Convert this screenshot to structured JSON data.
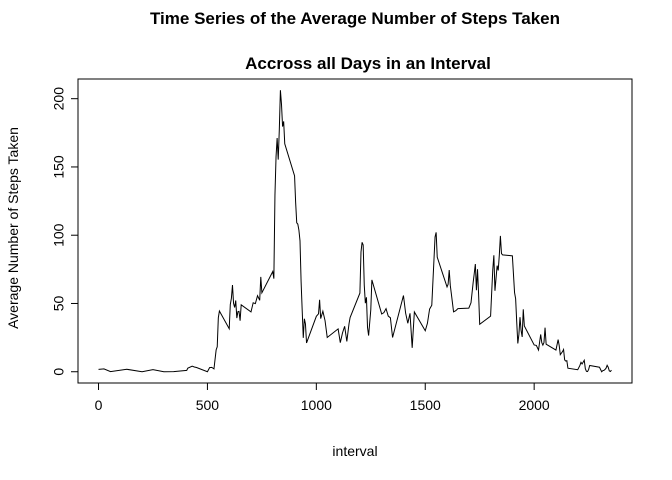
{
  "chart_data": {
    "type": "line",
    "title": "Time Series of the Average Number of Steps Taken",
    "subtitle": "Accross all Days in an Interval",
    "x_label": "interval",
    "y_label": "Average Number of Steps Taken",
    "color": "#000000",
    "xlim": [
      -94.2,
      2449.2
    ],
    "ylim": [
      -8.25,
      214.42
    ],
    "xticks": [
      0,
      500,
      1000,
      1500,
      2000
    ],
    "yticks": [
      0,
      50,
      100,
      150,
      200
    ],
    "x": [
      0,
      25,
      55,
      130,
      200,
      250,
      300,
      345,
      405,
      410,
      430,
      440,
      450,
      500,
      510,
      520,
      530,
      540,
      545,
      550,
      555,
      600,
      605,
      610,
      615,
      620,
      625,
      630,
      635,
      640,
      645,
      650,
      655,
      700,
      710,
      720,
      730,
      740,
      745,
      750,
      800,
      805,
      810,
      815,
      820,
      825,
      830,
      835,
      840,
      845,
      850,
      855,
      900,
      905,
      910,
      915,
      920,
      925,
      930,
      935,
      940,
      945,
      950,
      955,
      1000,
      1010,
      1015,
      1020,
      1030,
      1040,
      1050,
      1100,
      1110,
      1120,
      1130,
      1140,
      1150,
      1155,
      1200,
      1205,
      1210,
      1215,
      1220,
      1225,
      1230,
      1235,
      1240,
      1250,
      1255,
      1300,
      1310,
      1320,
      1330,
      1340,
      1350,
      1400,
      1410,
      1420,
      1430,
      1440,
      1450,
      1500,
      1510,
      1520,
      1530,
      1545,
      1550,
      1555,
      1600,
      1605,
      1610,
      1615,
      1620,
      1630,
      1640,
      1650,
      1700,
      1710,
      1720,
      1725,
      1730,
      1735,
      1740,
      1745,
      1750,
      1800,
      1805,
      1810,
      1815,
      1820,
      1830,
      1835,
      1840,
      1845,
      1850,
      1855,
      1900,
      1910,
      1915,
      1920,
      1925,
      1930,
      1935,
      1940,
      1945,
      1950,
      1955,
      2000,
      2010,
      2020,
      2030,
      2035,
      2040,
      2045,
      2050,
      2055,
      2100,
      2110,
      2115,
      2120,
      2130,
      2135,
      2140,
      2145,
      2150,
      2155,
      2200,
      2210,
      2215,
      2220,
      2225,
      2230,
      2235,
      2240,
      2245,
      2250,
      2255,
      2300,
      2310,
      2315,
      2320,
      2325,
      2330,
      2335,
      2340,
      2345,
      2350,
      2355
    ],
    "values": [
      1.7,
      2.1,
      0.1,
      1.8,
      0,
      1.5,
      0,
      0.1,
      1,
      2.6,
      4.1,
      3.5,
      3.1,
      0,
      3,
      3.2,
      2.1,
      16,
      18.3,
      39.5,
      44.5,
      31.5,
      49.3,
      53.8,
      63.5,
      50,
      47.1,
      52.2,
      39.3,
      44,
      44.2,
      37.4,
      49,
      43.8,
      50.5,
      49.9,
      55.7,
      52.3,
      69.5,
      57.8,
      73.4,
      68.2,
      129.4,
      157.5,
      171.2,
      155.4,
      177.3,
      206.2,
      195.9,
      179.6,
      183.4,
      167,
      143.5,
      124,
      109.1,
      108.1,
      103.7,
      95.9,
      66.2,
      45.2,
      24.8,
      38.8,
      35,
      21.1,
      40.6,
      42.4,
      52.7,
      38.9,
      44.3,
      37.4,
      25.1,
      31.4,
      21.3,
      28.4,
      33.3,
      22.2,
      35.1,
      39.7,
      57.6,
      87.7,
      94.8,
      92.8,
      63.4,
      50.2,
      54.5,
      32.4,
      26.5,
      45.4,
      67.3,
      42.3,
      43.3,
      46.2,
      40.8,
      39.5,
      25.1,
      55.8,
      42.9,
      35.5,
      42.8,
      17.5,
      43.8,
      30,
      35.5,
      45.9,
      48.7,
      98.7,
      102.1,
      83.9,
      62.1,
      64.1,
      74.5,
      63.2,
      56.9,
      43.9,
      44.7,
      46.2,
      46.6,
      50.5,
      65.4,
      72,
      78.9,
      59.7,
      75.1,
      56.5,
      34.8,
      40.7,
      58,
      74.7,
      85.3,
      59.3,
      77.7,
      74.2,
      85.3,
      99.5,
      86.6,
      85.6,
      84.9,
      58,
      53.4,
      36.3,
      20.7,
      27.4,
      40,
      30.2,
      25.5,
      45.7,
      33.5,
      19.6,
      19.3,
      15.9,
      27.3,
      21.3,
      19.5,
      21.3,
      32.3,
      20.2,
      15.9,
      23.5,
      19.2,
      12.5,
      14.7,
      16.3,
      8.7,
      7.8,
      8.1,
      2.6,
      1.5,
      4.6,
      6.9,
      5.7,
      7,
      8.4,
      2.2,
      0.3,
      0.1,
      1.6,
      4.6,
      3.3,
      0,
      0.8,
      1,
      1.6,
      2.6,
      4.7,
      3.3,
      0.6,
      0.2,
      1.1
    ]
  }
}
